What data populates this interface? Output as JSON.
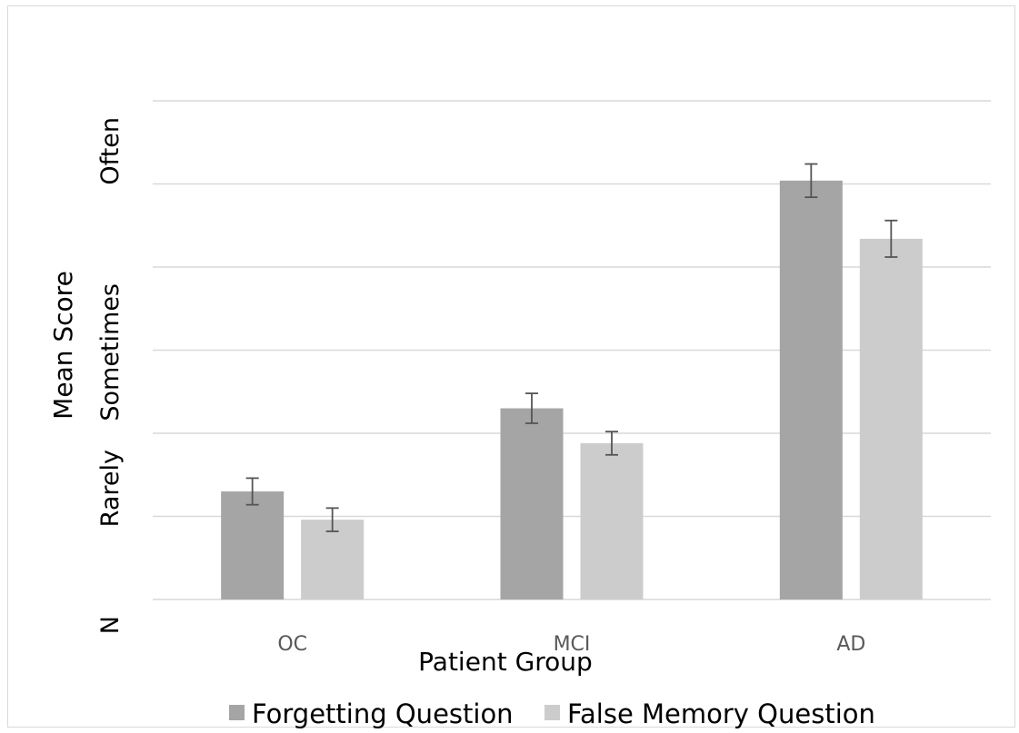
{
  "chart_data": {
    "type": "bar",
    "title": "",
    "xlabel": "Patient Group",
    "ylabel": "Mean Score",
    "categories": [
      "OC",
      "MCI",
      "AD"
    ],
    "y_tick_labels": [
      {
        "value": 0,
        "label": "N"
      },
      {
        "value": 1,
        "label": "Rarely"
      },
      {
        "value": 2,
        "label": "Sometimes"
      },
      {
        "value": 3,
        "label": "Often"
      }
    ],
    "ylim": [
      0,
      3
    ],
    "grid": true,
    "legend_position": "bottom",
    "series": [
      {
        "name": "Forgetting Question",
        "color": "#a5a5a5",
        "values": [
          0.65,
          1.15,
          2.52
        ],
        "errors": [
          0.08,
          0.09,
          0.1
        ]
      },
      {
        "name": "False Memory Question",
        "color": "#cccccc",
        "values": [
          0.48,
          0.94,
          2.17
        ],
        "errors": [
          0.07,
          0.07,
          0.11
        ]
      }
    ]
  }
}
